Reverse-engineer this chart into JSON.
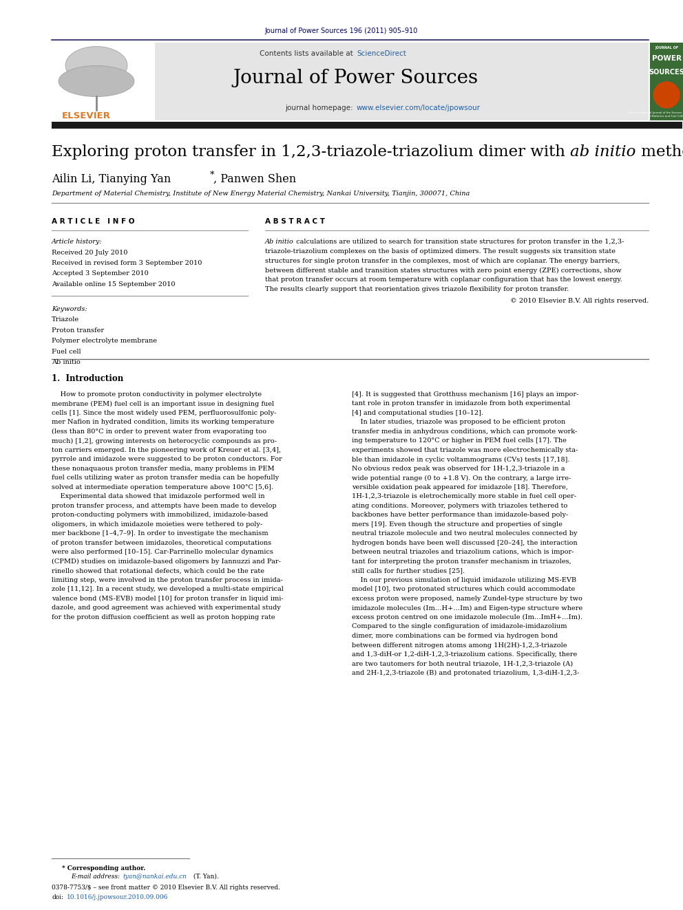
{
  "page_width": 9.92,
  "page_height": 13.23,
  "background_color": "#ffffff",
  "header_journal_text": "Journal of Power Sources 196 (2011) 905–910",
  "header_journal_color": "#000066",
  "header_journal_fontsize": 7.0,
  "sciencedirect_text": "ScienceDirect",
  "sciencedirect_color": "#2060a0",
  "journal_name": "Journal of Power Sources",
  "journal_name_fontsize": 20,
  "homepage_url": "www.elsevier.com/locate/jpowsour",
  "homepage_color": "#1a5fa8",
  "header_bg_color": "#e5e5e5",
  "dark_bar_color": "#1a1a1a",
  "title_fontsize": 16.5,
  "authors_fontsize": 11.5,
  "affiliation_fontsize": 7.0,
  "article_info_header": "A R T I C L E   I N F O",
  "abstract_header": "A B S T R A C T",
  "section_header_fontsize": 7.5,
  "article_history_label": "Article history:",
  "received_text": "Received 20 July 2010",
  "revised_text": "Received in revised form 3 September 2010",
  "accepted_text": "Accepted 3 September 2010",
  "online_text": "Available online 15 September 2010",
  "keywords_label": "Keywords:",
  "keywords": [
    "Triazole",
    "Proton transfer",
    "Polymer electrolyte membrane",
    "Fuel cell",
    "Ab initio"
  ],
  "copyright_text": "© 2010 Elsevier B.V. All rights reserved.",
  "intro_section": "1.  Introduction",
  "footnote_corresponding": "* Corresponding author.",
  "footnote_issn": "0378-7753/$ – see front matter © 2010 Elsevier B.V. All rights reserved.",
  "footnote_doi": "doi:10.1016/j.jpowsour.2010.09.006",
  "text_color": "#000000",
  "link_color": "#1a5fa8",
  "body_fontsize": 7.0,
  "info_fontsize": 7.0
}
